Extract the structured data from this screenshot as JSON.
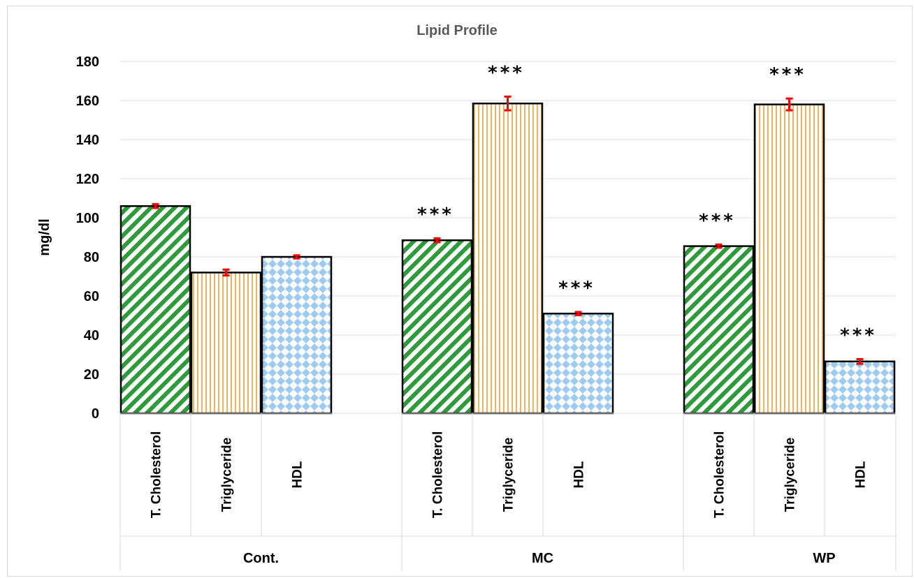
{
  "chart_data": {
    "type": "bar",
    "title": "Lipid Profile",
    "ylabel": "mg/dl",
    "xlabel": "",
    "ylim": [
      0,
      180
    ],
    "yticks": [
      0,
      20,
      40,
      60,
      80,
      100,
      120,
      140,
      160,
      180
    ],
    "grid": true,
    "groups": [
      {
        "name": "Cont.",
        "bars": [
          {
            "label": "T. Cholesterol",
            "value": 106,
            "error": 1,
            "significance": ""
          },
          {
            "label": "Triglyceride",
            "value": 72,
            "error": 1.5,
            "significance": ""
          },
          {
            "label": "HDL",
            "value": 80,
            "error": 0.8,
            "significance": ""
          }
        ]
      },
      {
        "name": "MC",
        "bars": [
          {
            "label": "T. Cholesterol",
            "value": 88.5,
            "error": 1,
            "significance": "***"
          },
          {
            "label": "Triglyceride",
            "value": 158.5,
            "error": 3.5,
            "significance": "***"
          },
          {
            "label": "HDL",
            "value": 51,
            "error": 0.8,
            "significance": "***"
          }
        ]
      },
      {
        "name": "WP",
        "bars": [
          {
            "label": "T. Cholesterol",
            "value": 85.5,
            "error": 0.8,
            "significance": "***"
          },
          {
            "label": "Triglyceride",
            "value": 158,
            "error": 3,
            "significance": "***"
          },
          {
            "label": "HDL",
            "value": 26.5,
            "error": 1.2,
            "significance": "***"
          }
        ]
      }
    ],
    "colors": {
      "T. Cholesterol": "#2e9b3b",
      "Triglyceride": "#f4b35a",
      "HDL": "#9ecbf0",
      "error_bar": "#ff0000",
      "gridline": "#d9d9d9"
    }
  }
}
